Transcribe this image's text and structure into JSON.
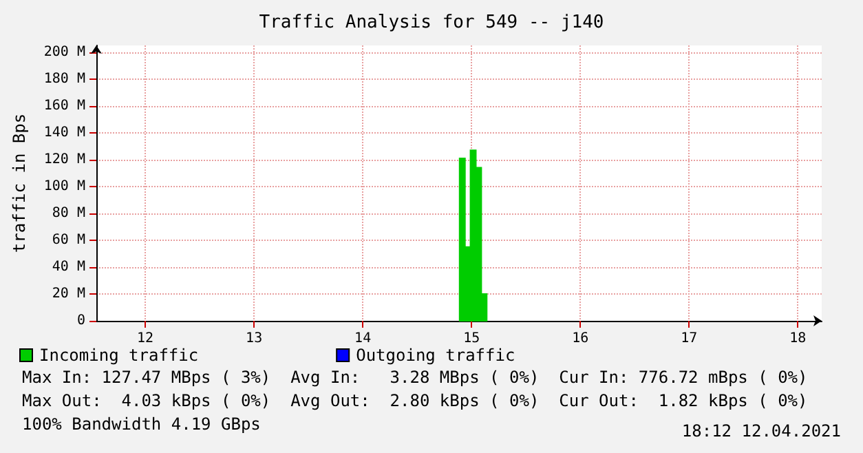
{
  "chart_data": {
    "type": "histogram",
    "title": "Traffic Analysis for 549 -- j140",
    "ylabel": "traffic in Bps",
    "bins": [
      14.89,
      14.94,
      14.99,
      15.04,
      15.09,
      15.14
    ],
    "series": [
      {
        "name": "Incoming traffic",
        "color": "#00cc00",
        "values": [
          121,
          55,
          127,
          114,
          20
        ]
      },
      {
        "name": "Outgoing traffic",
        "color": "#0000ff",
        "values": [
          0,
          0,
          0,
          0,
          0
        ]
      }
    ],
    "xlim": [
      11.55,
      18.22
    ],
    "xticks": [
      12,
      13,
      14,
      15,
      16,
      17,
      18
    ],
    "ylim": [
      0,
      205
    ],
    "yticks": [
      0,
      {
        "value": 20,
        "label": "20 M"
      },
      {
        "value": 40,
        "label": "40 M"
      },
      {
        "value": 60,
        "label": "60 M"
      },
      {
        "value": 80,
        "label": "80 M"
      },
      {
        "value": 100,
        "label": "100 M"
      },
      {
        "value": 120,
        "label": "120 M"
      },
      {
        "value": 140,
        "label": "140 M"
      },
      {
        "value": 160,
        "label": "160 M"
      },
      {
        "value": 180,
        "label": "180 M"
      },
      {
        "value": 200,
        "label": "200 M"
      }
    ],
    "grid": true,
    "legend": "bottom",
    "annotations": [
      "Max In: 127.47 MBps ( 3%)  Avg In:   3.28 MBps ( 0%)  Cur In: 776.72 mBps ( 0%)",
      "Max Out:  4.03 kBps ( 0%)  Avg Out:  2.80 kBps ( 0%)  Cur Out:  1.82 kBps ( 0%)",
      "100% Bandwidth 4.19 GBps",
      "18:12 12.04.2021"
    ]
  }
}
